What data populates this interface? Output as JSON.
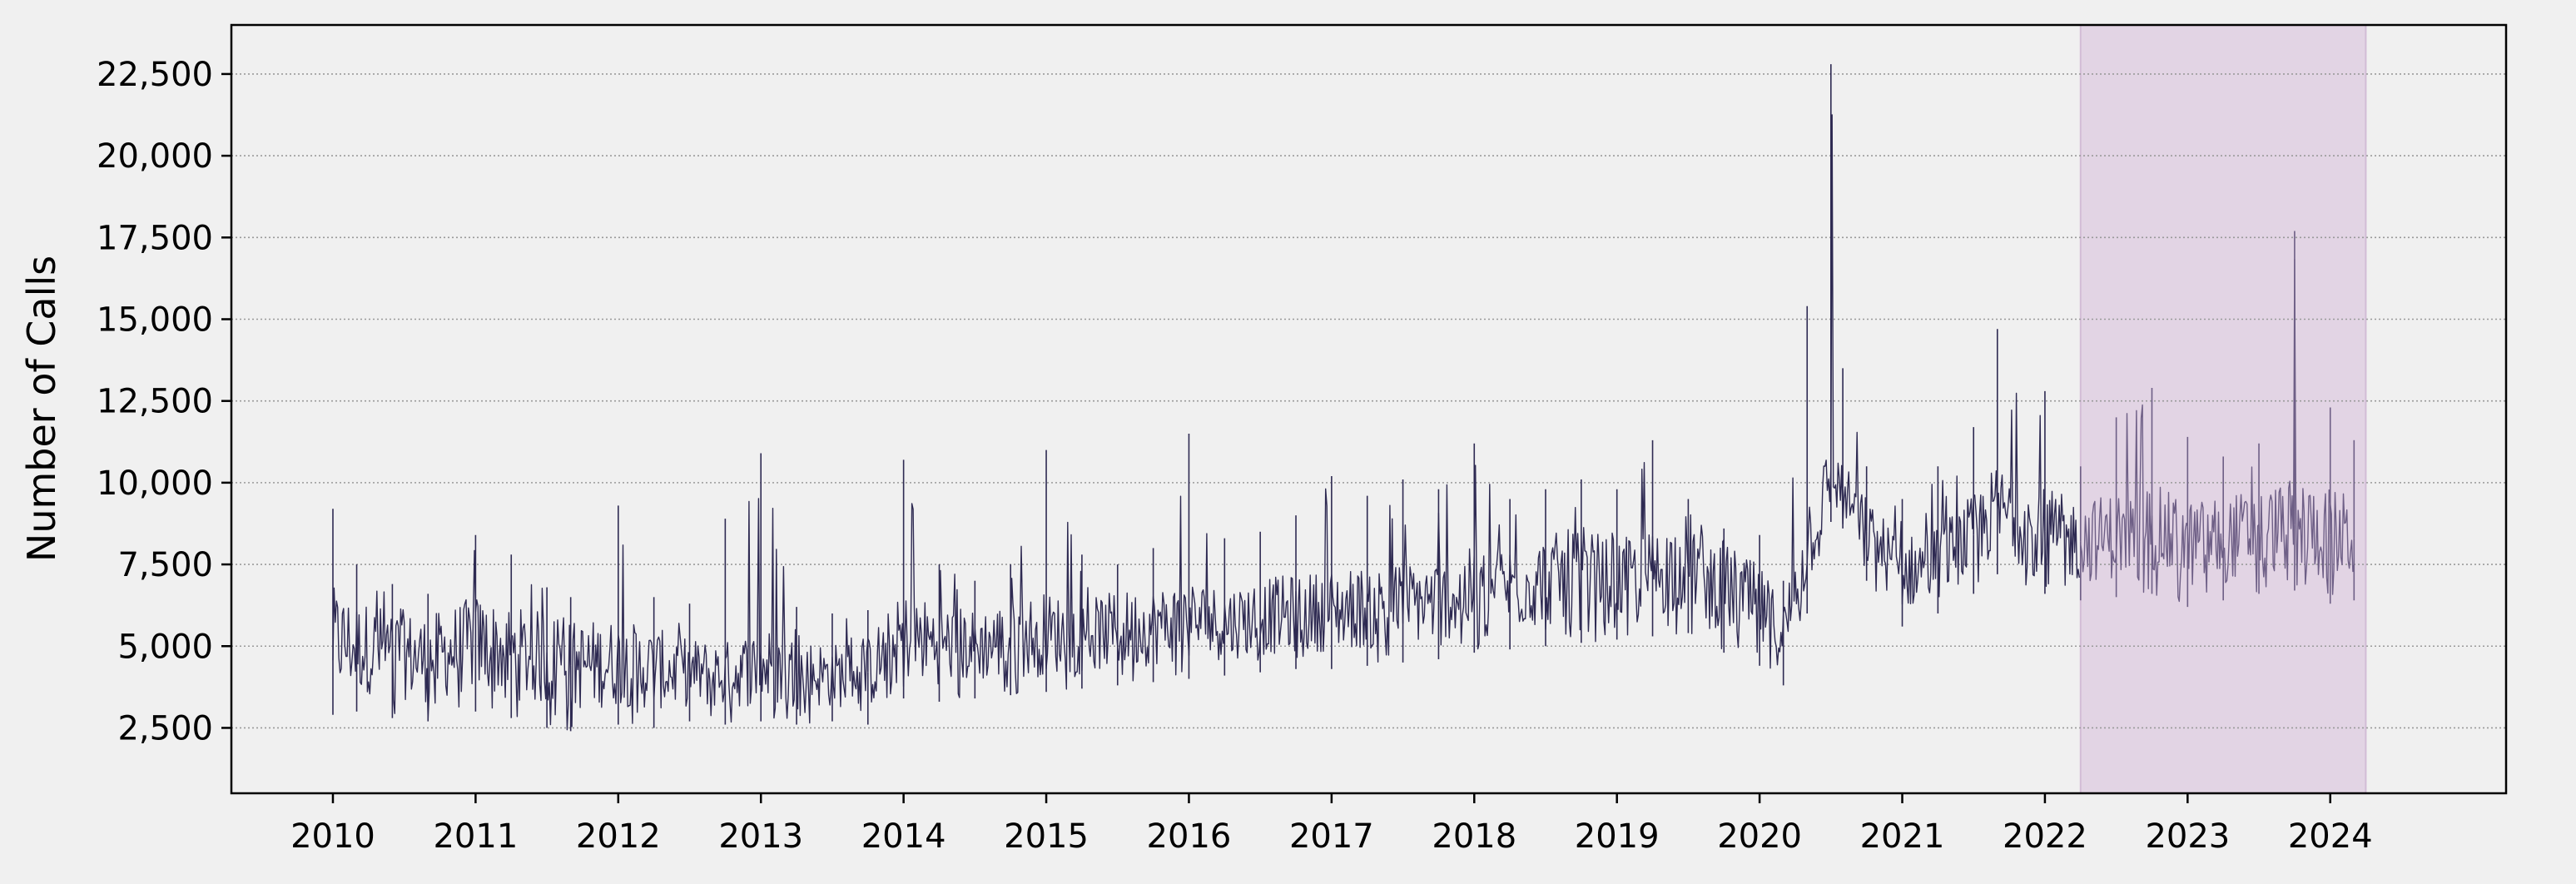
{
  "chart_data": {
    "type": "line",
    "title": "",
    "xlabel": "",
    "ylabel": "Number of Calls",
    "x_tick_labels": [
      "2010",
      "2011",
      "2012",
      "2013",
      "2014",
      "2015",
      "2016",
      "2017",
      "2018",
      "2019",
      "2020",
      "2021",
      "2022",
      "2023",
      "2024"
    ],
    "y_tick_labels": [
      "2,500",
      "5,000",
      "7,500",
      "10,000",
      "12,500",
      "15,000",
      "17,500",
      "20,000",
      "22,500"
    ],
    "y_ticks": [
      2500,
      5000,
      7500,
      10000,
      12500,
      15000,
      17500,
      20000,
      22500
    ],
    "xlim": [
      "2009-04-15",
      "2025-03-25"
    ],
    "ylim": [
      500,
      24000
    ],
    "grid": "horizontal-dotted",
    "colors": {
      "series": "#2e2a52",
      "highlight_series": "#6e5f86",
      "highlight_band": "#e2d4e4",
      "background": "#f0f0f0"
    },
    "highlight_range": [
      "2022-04-01",
      "2024-03-31"
    ],
    "series": [
      {
        "x": [
          "2010-01",
          "2010-03",
          "2010-06",
          "2010-09",
          "2011-01",
          "2011-04",
          "2011-07",
          "2011-09",
          "2012-01",
          "2012-04",
          "2012-07",
          "2012-10",
          "2013-01",
          "2013-04",
          "2013-07",
          "2013-10",
          "2014-01",
          "2014-04",
          "2014-07",
          "2014-10",
          "2015-01",
          "2015-04",
          "2015-07",
          "2015-10",
          "2016-01",
          "2016-04",
          "2016-07",
          "2016-10",
          "2017-01",
          "2017-04",
          "2017-07",
          "2017-10",
          "2018-01",
          "2018-04",
          "2018-07",
          "2018-10",
          "2019-01",
          "2019-04",
          "2019-07",
          "2019-10",
          "2020-01",
          "2020-03",
          "2020-05",
          "2020-07",
          "2020-08",
          "2020-10",
          "2021-01",
          "2021-04",
          "2021-07",
          "2021-09",
          "2022-01",
          "2022-04",
          "2022-07",
          "2022-10",
          "2023-01",
          "2023-04",
          "2023-07",
          "2023-10",
          "2024-01",
          "2024-03"
        ],
        "y": [
          5200,
          5000,
          4800,
          4600,
          5100,
          4800,
          4600,
          4400,
          4500,
          4300,
          4200,
          4100,
          4400,
          4200,
          4100,
          4200,
          5300,
          5100,
          5000,
          5200,
          5400,
          5300,
          5500,
          5600,
          5800,
          5700,
          5900,
          6000,
          6100,
          6200,
          6300,
          6400,
          6700,
          6800,
          7000,
          7200,
          7000,
          7200,
          7600,
          6800,
          6200,
          5300,
          8200,
          10200,
          9800,
          8500,
          7200,
          7600,
          8400,
          9200,
          8500,
          8200,
          8400,
          8600,
          8100,
          8300,
          8500,
          8700,
          8400,
          8300
        ],
        "low": [
          2900,
          3000,
          2800,
          2700,
          3000,
          2800,
          2500,
          2400,
          2600,
          2500,
          2700,
          2600,
          2700,
          2600,
          2700,
          2600,
          3400,
          3300,
          3400,
          3500,
          3600,
          3700,
          3800,
          3900,
          4000,
          4100,
          4200,
          4300,
          4300,
          4400,
          4500,
          4600,
          4800,
          4900,
          5000,
          5100,
          5200,
          5300,
          5400,
          4800,
          4400,
          3800,
          6000,
          8800,
          8600,
          7000,
          5600,
          6000,
          6600,
          7200,
          6600,
          6400,
          6500,
          6600,
          6200,
          6400,
          6600,
          6700,
          6300,
          6400
        ],
        "high": [
          9200,
          7500,
          6900,
          6600,
          8400,
          7800,
          6800,
          6500,
          9300,
          6500,
          6300,
          8900,
          10900,
          6200,
          6000,
          6100,
          10700,
          7500,
          7000,
          7500,
          11000,
          7800,
          7500,
          8000,
          11500,
          8300,
          8500,
          9000,
          10200,
          9600,
          10100,
          9800,
          11200,
          9500,
          9800,
          10100,
          9800,
          11300,
          9500,
          8600,
          8400,
          7000,
          15400,
          22800,
          13500,
          10500,
          9500,
          10500,
          11700,
          14700,
          12800,
          10500,
          12000,
          12900,
          11400,
          10800,
          11200,
          17700,
          12300,
          11300
        ]
      }
    ]
  }
}
